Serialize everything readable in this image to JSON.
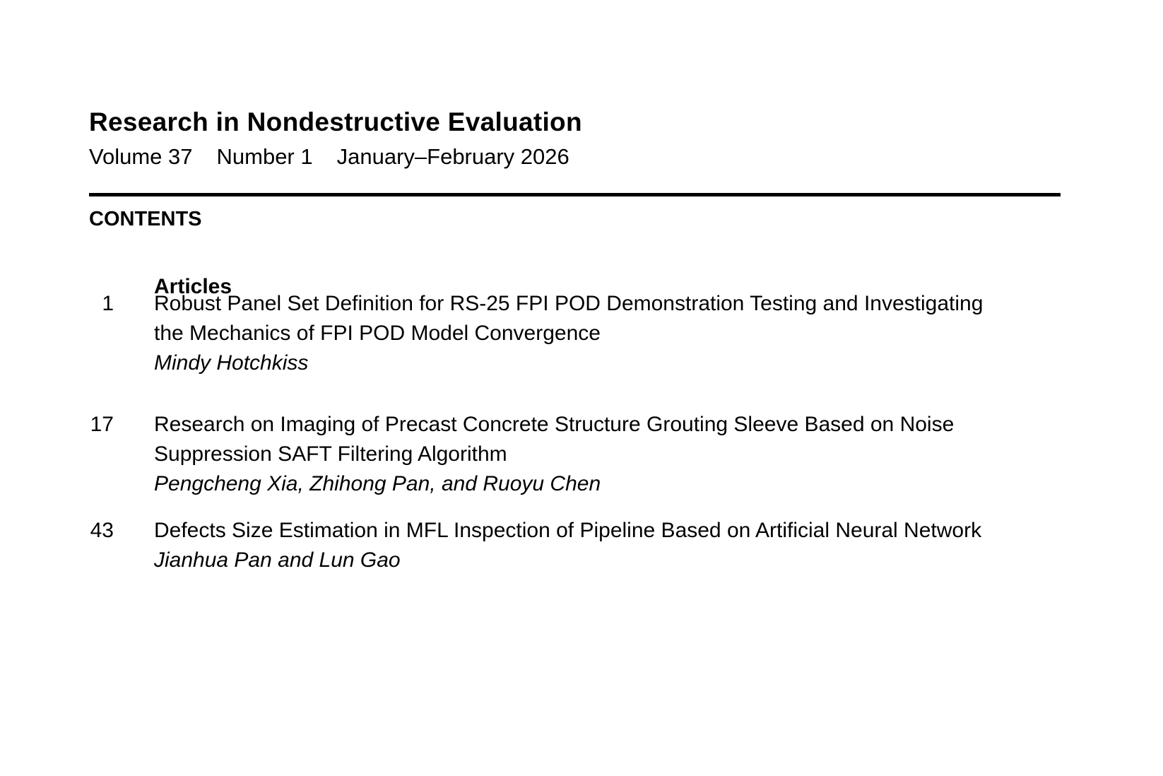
{
  "journal": {
    "title": "Research in Nondestructive Evaluation",
    "volume": "Volume 37",
    "number": "Number 1",
    "date": "January–February 2026"
  },
  "contents_heading": "CONTENTS",
  "section_heading": "Articles",
  "articles": [
    {
      "page": "1",
      "title_lines": [
        "Robust Panel Set Definition for RS-25 FPI POD Demonstration Testing and Investigating",
        "the Mechanics of FPI POD Model Convergence"
      ],
      "authors": "Mindy Hotchkiss"
    },
    {
      "page": "17",
      "title_lines": [
        "Research on Imaging of Precast Concrete Structure Grouting Sleeve Based on Noise",
        "Suppression SAFT Filtering Algorithm"
      ],
      "authors": "Pengcheng Xia, Zhihong Pan, and Ruoyu Chen"
    },
    {
      "page": "43",
      "title_lines": [
        "Defects Size Estimation in MFL Inspection of Pipeline Based on Artificial Neural Network"
      ],
      "authors": "Jianhua Pan and Lun Gao"
    }
  ]
}
